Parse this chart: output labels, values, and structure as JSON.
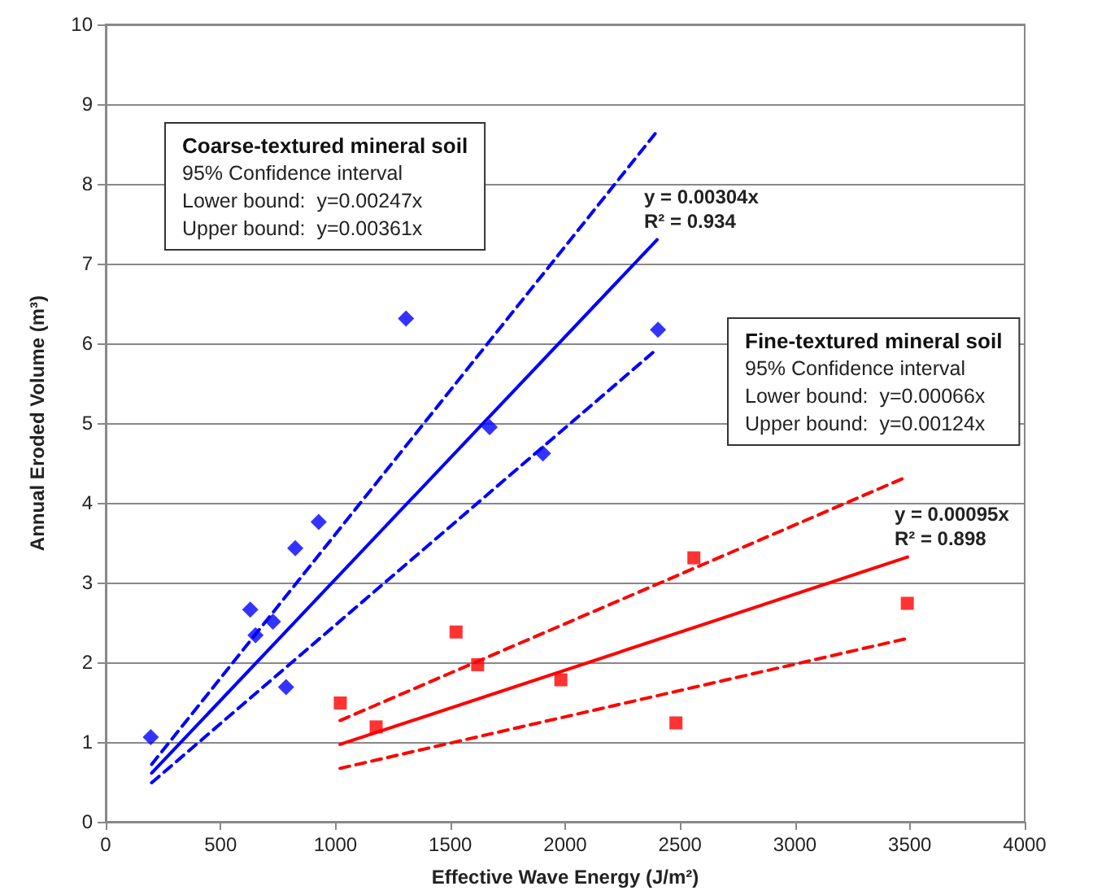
{
  "chart_data": {
    "type": "scatter",
    "xlabel": "Effective Wave Energy (J/m²)",
    "ylabel": "Annual Eroded Volume (m³)",
    "xlim": [
      0,
      4000
    ],
    "xticks": [
      0,
      500,
      1000,
      1500,
      2000,
      2500,
      3000,
      3500,
      4000
    ],
    "ylim": [
      0,
      10
    ],
    "yticks": [
      0,
      1,
      2,
      3,
      4,
      5,
      6,
      7,
      8,
      9,
      10
    ],
    "grid": "y",
    "series": [
      {
        "marker": "diamond",
        "color": "#0000ff",
        "x": [
          196,
          629,
          652,
          728,
          785,
          825,
          927,
          1307,
          1671,
          1903,
          2404
        ],
        "values": [
          1.06,
          2.66,
          2.34,
          2.51,
          1.69,
          3.43,
          3.76,
          6.31,
          4.95,
          4.62,
          6.17
        ]
      },
      {
        "marker": "square",
        "color": "#ff0000",
        "x": [
          1021,
          1177,
          1525,
          1619,
          1981,
          2482,
          2560,
          3489
        ],
        "values": [
          1.49,
          1.19,
          2.38,
          1.97,
          1.78,
          1.24,
          3.31,
          2.74
        ]
      },
      {
        "type": "line",
        "marker": "none",
        "line_style": "solid",
        "color": "#0000ff",
        "x": [
          200,
          2400
        ],
        "values": [
          0.61,
          7.3
        ]
      },
      {
        "type": "line",
        "marker": "none",
        "line_style": "dashed",
        "color": "#0000ff",
        "x": [
          200,
          2400
        ],
        "values": [
          0.49,
          5.93
        ]
      },
      {
        "type": "line",
        "marker": "none",
        "line_style": "dashed",
        "color": "#0000ff",
        "x": [
          200,
          2400
        ],
        "values": [
          0.72,
          8.66
        ]
      },
      {
        "type": "line",
        "marker": "none",
        "line_style": "solid",
        "color": "#ff0000",
        "x": [
          1020,
          3490
        ],
        "values": [
          0.97,
          3.32
        ]
      },
      {
        "type": "line",
        "marker": "none",
        "line_style": "dashed",
        "color": "#ff0000",
        "x": [
          1020,
          3490
        ],
        "values": [
          0.67,
          2.3
        ]
      },
      {
        "type": "line",
        "marker": "none",
        "line_style": "dashed",
        "color": "#ff0000",
        "x": [
          1020,
          3490
        ],
        "values": [
          1.27,
          4.33
        ]
      }
    ],
    "annotations": [
      "Coarse-textured mineral soil\n95% Confidence interval\nLower bound:  y=0.00247x\nUpper bound:  y=0.00361x",
      "Fine-textured mineral soil\n95% Confidence interval\nLower bound:  y=0.00066x\nUpper bound:  y=0.00124x",
      {
        "text": "y = 0.00304x\nR² = 0.934",
        "x": 2400,
        "y": 7.3
      },
      {
        "text": "y = 0.00095x\nR² = 0.898",
        "x": 3490,
        "y": 3.32
      }
    ]
  }
}
